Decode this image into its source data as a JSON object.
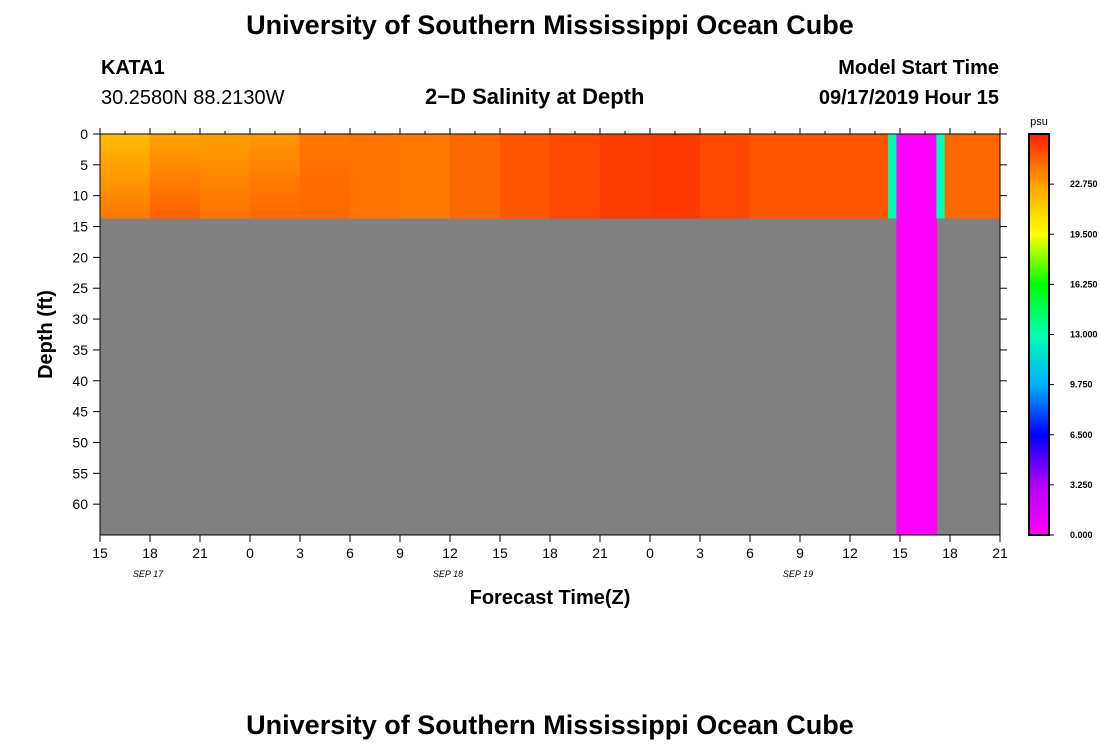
{
  "header": {
    "title": "University of Southern Mississippi Ocean Cube",
    "station": "KATA1",
    "coords": "30.2580N 88.2130W",
    "plot_title": "2−D Salinity at Depth",
    "start_label": "Model Start Time",
    "start_value": "09/17/2019 Hour 15"
  },
  "footer": {
    "title": "University of Southern Mississippi Ocean Cube"
  },
  "chart_data": {
    "type": "heatmap",
    "title": "2−D Salinity at Depth",
    "xlabel": "Forecast Time(Z)",
    "ylabel": "Depth (ft)",
    "x_ticks": [
      "15",
      "18",
      "21",
      "0",
      "3",
      "6",
      "9",
      "12",
      "15",
      "18",
      "21",
      "0",
      "3",
      "6",
      "9",
      "12",
      "15",
      "18",
      "21"
    ],
    "date_labels": [
      {
        "label": "SEP 17",
        "tick_index": 1
      },
      {
        "label": "SEP 18",
        "tick_index": 7
      },
      {
        "label": "SEP 19",
        "tick_index": 14
      }
    ],
    "y_ticks": [
      0,
      5,
      10,
      15,
      20,
      25,
      30,
      35,
      40,
      45,
      50,
      55,
      60
    ],
    "y_range": [
      0,
      65
    ],
    "x_range_hours": [
      0,
      54
    ],
    "colorbar": {
      "unit": "psu",
      "min": 0,
      "max": 26,
      "tick_values": [
        "0.000",
        "3.250",
        "6.500",
        "9.750",
        "13.000",
        "16.250",
        "19.500",
        "22.750"
      ],
      "colors": [
        "#ff00ff",
        "#b200ff",
        "#0000ff",
        "#00b0ff",
        "#00ffb0",
        "#00ff00",
        "#ffff00",
        "#ffa000",
        "#ff2000"
      ]
    },
    "no_data_color": "#808080",
    "water_column_depth_ft": 13.7,
    "salinity_columns": [
      {
        "hours": [
          0,
          3
        ],
        "top_psu": 21.8,
        "bottom_psu": 23.8
      },
      {
        "hours": [
          3,
          6
        ],
        "top_psu": 22.6,
        "bottom_psu": 24.4
      },
      {
        "hours": [
          6,
          9
        ],
        "top_psu": 22.8,
        "bottom_psu": 23.9
      },
      {
        "hours": [
          9,
          12
        ],
        "top_psu": 23.0,
        "bottom_psu": 24.2
      },
      {
        "hours": [
          12,
          15
        ],
        "top_psu": 23.8,
        "bottom_psu": 24.2
      },
      {
        "hours": [
          15,
          18
        ],
        "top_psu": 23.9,
        "bottom_psu": 23.9
      },
      {
        "hours": [
          18,
          21
        ],
        "top_psu": 23.7,
        "bottom_psu": 23.7
      },
      {
        "hours": [
          21,
          24
        ],
        "top_psu": 24.2,
        "bottom_psu": 24.2
      },
      {
        "hours": [
          24,
          27
        ],
        "top_psu": 24.6,
        "bottom_psu": 24.6
      },
      {
        "hours": [
          27,
          30
        ],
        "top_psu": 25.0,
        "bottom_psu": 25.0
      },
      {
        "hours": [
          30,
          33
        ],
        "top_psu": 25.3,
        "bottom_psu": 25.3
      },
      {
        "hours": [
          33,
          36
        ],
        "top_psu": 25.4,
        "bottom_psu": 25.4
      },
      {
        "hours": [
          36,
          39
        ],
        "top_psu": 25.0,
        "bottom_psu": 25.0
      },
      {
        "hours": [
          39,
          47.3
        ],
        "top_psu": 24.6,
        "bottom_psu": 24.6
      },
      {
        "hours": [
          47.3,
          47.8
        ],
        "top_psu": 13.0,
        "bottom_psu": 13.0
      },
      {
        "hours": [
          47.8,
          50.2
        ],
        "top_psu": 0.0,
        "bottom_psu": 0.0,
        "full_depth": true
      },
      {
        "hours": [
          50.2,
          50.7
        ],
        "top_psu": 13.0,
        "bottom_psu": 13.0
      },
      {
        "hours": [
          50.7,
          54
        ],
        "top_psu": 24.2,
        "bottom_psu": 24.2
      }
    ]
  }
}
